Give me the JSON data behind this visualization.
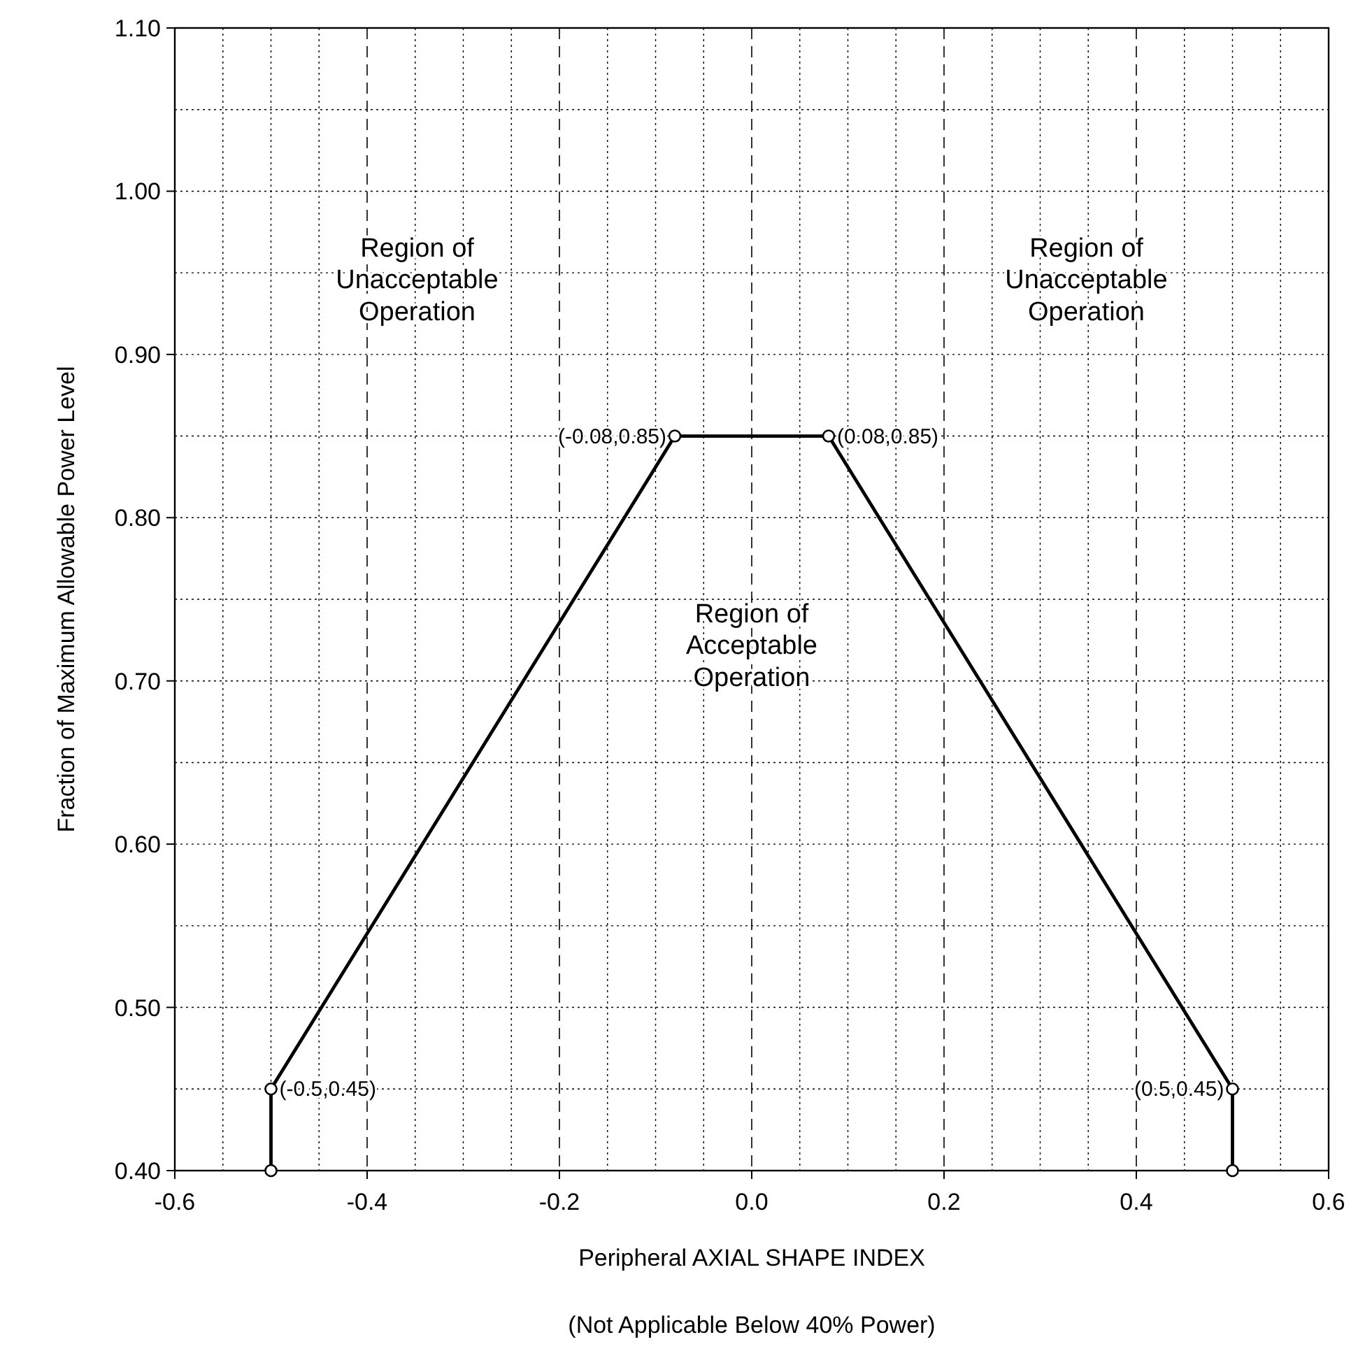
{
  "chart_data": {
    "type": "line",
    "xlabel": "Peripheral AXIAL SHAPE INDEX",
    "ylabel": "Fraction of Maximum Allowable Power Level",
    "series": [
      {
        "x": [
          -0.5,
          -0.5,
          -0.08,
          0.08,
          0.5,
          0.5
        ],
        "values": [
          0.4,
          0.45,
          0.85,
          0.85,
          0.45,
          0.4
        ],
        "color": "#000000"
      }
    ],
    "xlim": [
      -0.6,
      0.6
    ],
    "ylim": [
      0.4,
      1.1
    ],
    "xticks": [
      -0.6,
      -0.4,
      -0.2,
      {
        "value": 0,
        "label": "0.0"
      },
      0.2,
      0.4,
      0.6
    ],
    "yticks": [
      {
        "value": 0.4,
        "label": "0.40"
      },
      {
        "value": 0.5,
        "label": "0.50"
      },
      {
        "value": 0.6,
        "label": "0.60"
      },
      {
        "value": 0.7,
        "label": "0.70"
      },
      {
        "value": 0.8,
        "label": "0.80"
      },
      {
        "value": 0.9,
        "label": "0.90"
      },
      {
        "value": 1.0,
        "label": "1.00"
      },
      {
        "value": 1.1,
        "label": "1.10"
      }
    ],
    "grid": true,
    "marker": "circle",
    "line_style": "solid",
    "annotations": [
      {
        "text": "(-0.08,0.85)",
        "x": -0.08,
        "y": 0.85
      },
      {
        "text": "(0.08,0.85)",
        "x": 0.08,
        "y": 0.85
      },
      {
        "text": "(-0.5,0.45)",
        "x": -0.5,
        "y": 0.45
      },
      {
        "text": "(0.5,0.45)",
        "x": 0.5,
        "y": 0.45
      },
      "Region of\nUnacceptable\nOperation",
      "Region of\nUnacceptable\nOperation",
      "Region of\nAcceptable\nOperation",
      "(Not Applicable Below 40% Power)"
    ]
  }
}
